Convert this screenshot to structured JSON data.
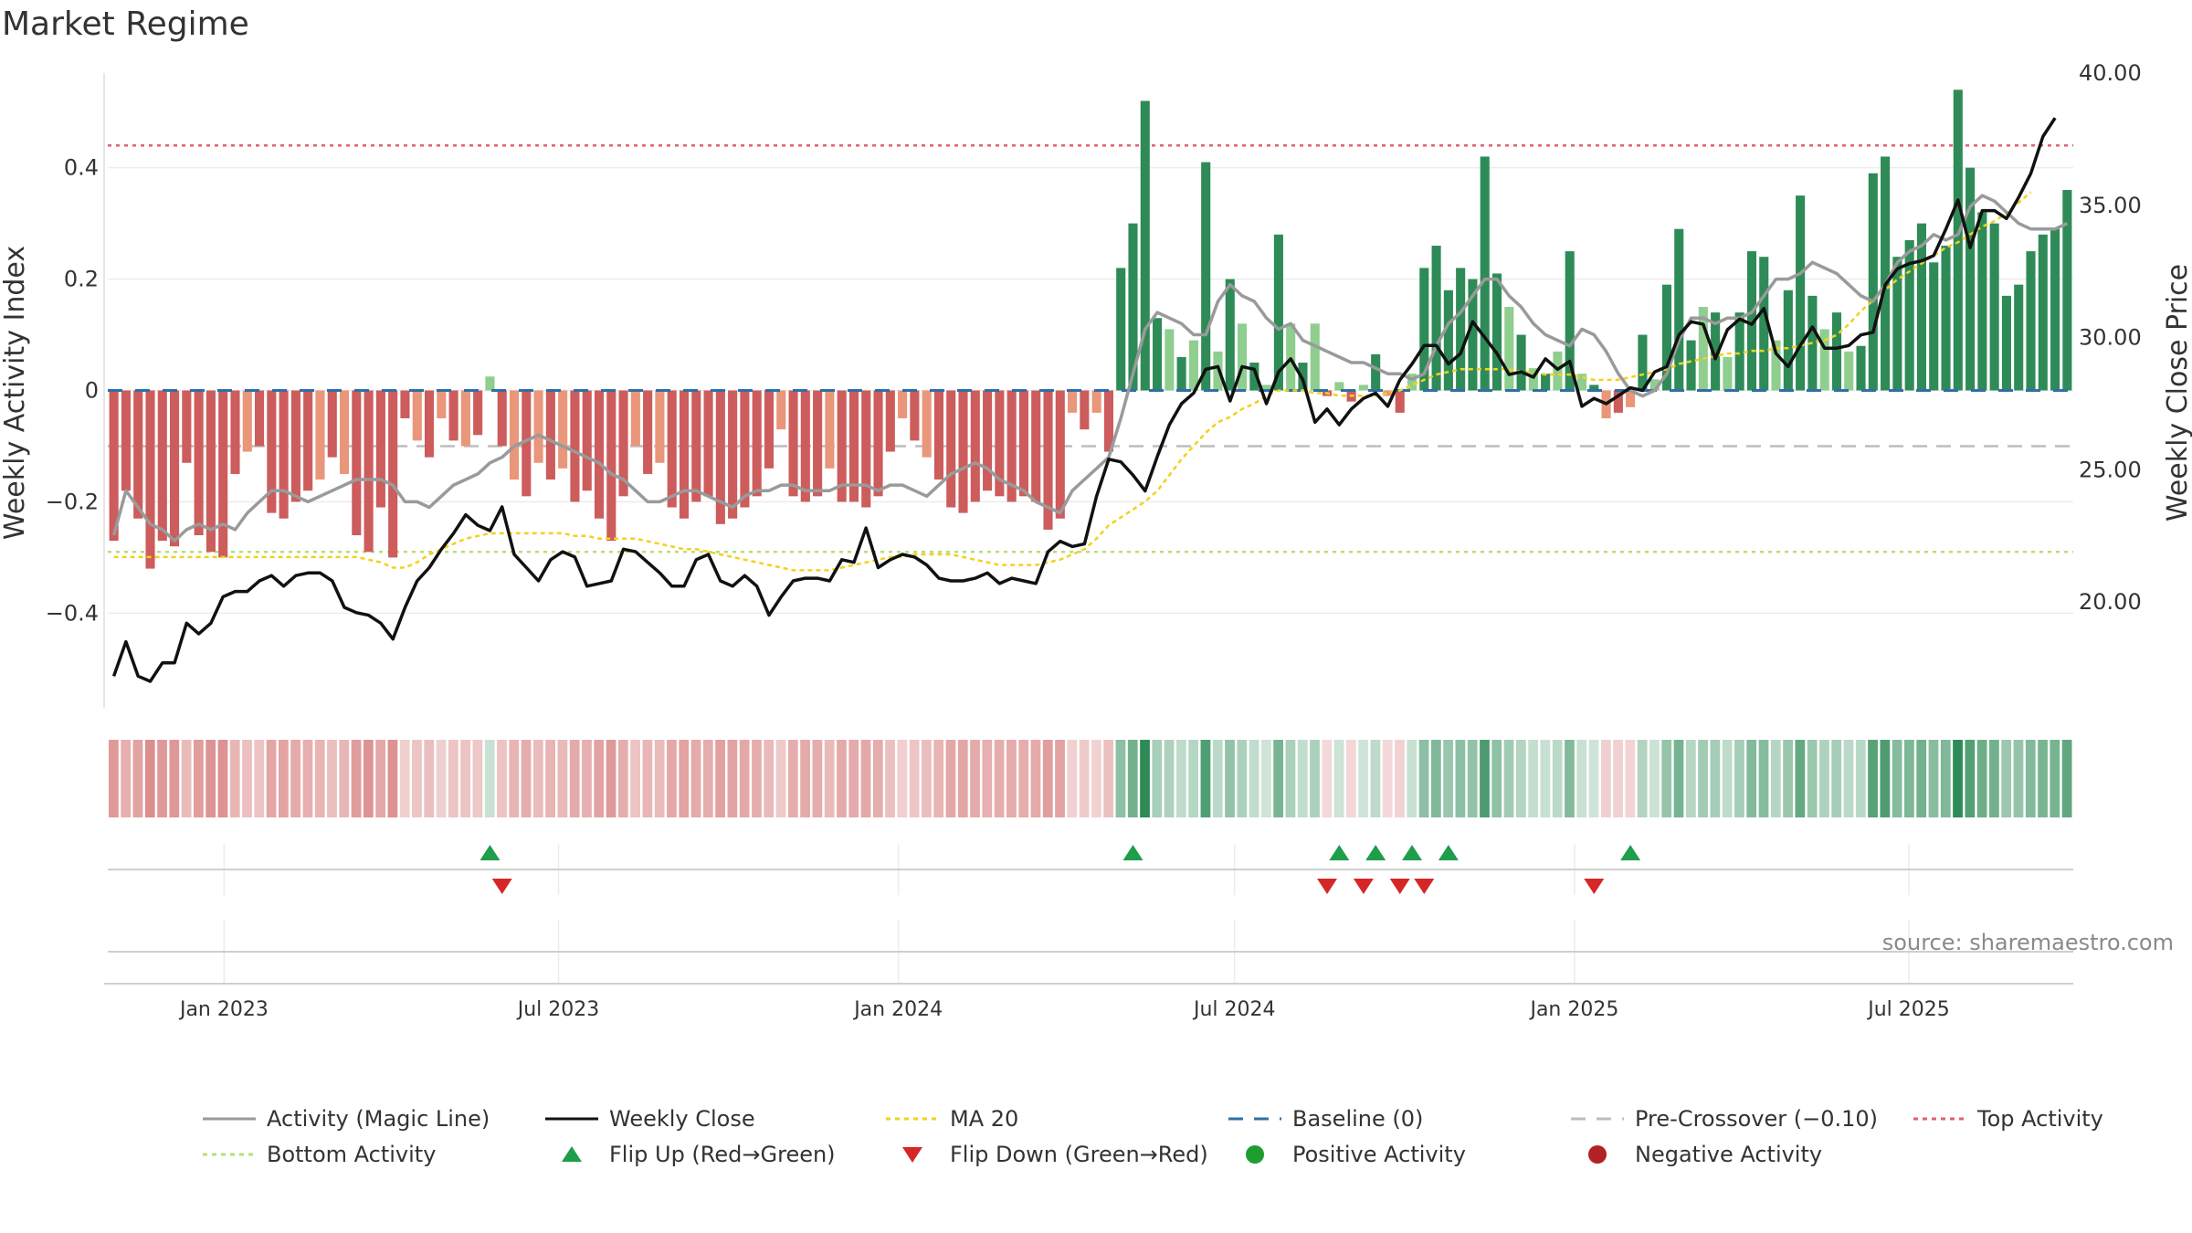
{
  "title": "Market Regime",
  "source": "source: sharemaestro.com",
  "chart_data": {
    "type": "bar",
    "title": "Market Regime",
    "ylabel_left": "Weekly Activity Index",
    "ylabel_right": "Weekly Close Price",
    "left_axis": {
      "range": [
        -0.57,
        0.57
      ],
      "ticks": [
        -0.4,
        -0.2,
        0,
        0.2,
        0.4
      ],
      "tick_labels": [
        "−0.4",
        "−0.2",
        "0",
        "0.2",
        "0.4"
      ]
    },
    "right_axis": {
      "range": [
        16.0,
        40.0
      ],
      "ticks": [
        20,
        25,
        30,
        35,
        40
      ],
      "tick_labels": [
        "20.00",
        "25.00",
        "30.00",
        "35.00",
        "40.00"
      ]
    },
    "x_axis": {
      "start": "2022-10-30",
      "end": "2025-09-28",
      "ticks": [
        "2023-01-01",
        "2023-07-01",
        "2024-01-01",
        "2024-07-01",
        "2025-01-01",
        "2025-07-01"
      ],
      "tick_labels": [
        "Jan 2023",
        "Jul 2023",
        "Jan 2024",
        "Jul 2024",
        "Jan 2025",
        "Jul 2025"
      ]
    },
    "reference_lines": {
      "baseline": 0,
      "pre_crossover": -0.1,
      "top_activity": 0.44,
      "bottom_activity": -0.29
    },
    "colors": {
      "strong_negative": "#cd5c5c",
      "weak_negative": "#e9967a",
      "strong_positive": "#2e8b57",
      "weak_positive": "#8fce8f",
      "magic_line": "#9a9a9a",
      "weekly_close": "#111111",
      "ma20": "#f2d21b",
      "baseline": "#2f6fa7",
      "pre_crossover": "#bdbdbd",
      "top_activity": "#e06070",
      "bottom_activity": "#b9dd7a",
      "flip_up": "#1e9e4a",
      "flip_down": "#d62728",
      "positive_activity": "#1e9e2e",
      "negative_activity": "#b22222"
    },
    "legend": [
      {
        "label": "Activity (Magic Line)",
        "style": "line-solid",
        "color": "#9a9a9a"
      },
      {
        "label": "Weekly Close",
        "style": "line-solid",
        "color": "#111111"
      },
      {
        "label": "MA 20",
        "style": "line-dotted",
        "color": "#f2d21b"
      },
      {
        "label": "Baseline (0)",
        "style": "line-dashed",
        "color": "#2f6fa7"
      },
      {
        "label": "Pre-Crossover (−0.10)",
        "style": "line-dashed",
        "color": "#bdbdbd"
      },
      {
        "label": "Top Activity",
        "style": "line-dotted",
        "color": "#e06070"
      },
      {
        "label": "Bottom Activity",
        "style": "line-dotted",
        "color": "#b9dd7a"
      },
      {
        "label": "Flip Up (Red→Green)",
        "style": "triangle-up",
        "color": "#1e9e4a"
      },
      {
        "label": "Flip Down (Green→Red)",
        "style": "triangle-down",
        "color": "#d62728"
      },
      {
        "label": "Positive Activity",
        "style": "circle",
        "color": "#1e9e2e"
      },
      {
        "label": "Negative Activity",
        "style": "circle",
        "color": "#b22222"
      }
    ],
    "activity": [
      -0.27,
      -0.18,
      -0.23,
      -0.32,
      -0.27,
      -0.28,
      -0.13,
      -0.26,
      -0.29,
      -0.3,
      -0.15,
      -0.11,
      -0.1,
      -0.22,
      -0.23,
      -0.2,
      -0.18,
      -0.16,
      -0.12,
      -0.15,
      -0.26,
      -0.29,
      -0.21,
      -0.3,
      -0.05,
      -0.09,
      -0.12,
      -0.05,
      -0.09,
      -0.1,
      -0.08,
      0.025,
      -0.1,
      -0.16,
      -0.19,
      -0.13,
      -0.16,
      -0.14,
      -0.2,
      -0.18,
      -0.23,
      -0.27,
      -0.19,
      -0.1,
      -0.15,
      -0.13,
      -0.21,
      -0.23,
      -0.2,
      -0.19,
      -0.24,
      -0.23,
      -0.21,
      -0.19,
      -0.14,
      -0.07,
      -0.19,
      -0.2,
      -0.19,
      -0.14,
      -0.2,
      -0.2,
      -0.21,
      -0.19,
      -0.11,
      -0.05,
      -0.09,
      -0.12,
      -0.16,
      -0.21,
      -0.22,
      -0.2,
      -0.18,
      -0.19,
      -0.2,
      -0.19,
      -0.2,
      -0.25,
      -0.23,
      -0.04,
      -0.07,
      -0.04,
      -0.11,
      0.22,
      0.3,
      0.52,
      0.13,
      0.11,
      0.06,
      0.09,
      0.41,
      0.07,
      0.2,
      0.12,
      0.05,
      0.01,
      0.28,
      0.12,
      0.05,
      0.12,
      -0.01,
      0.015,
      -0.02,
      0.01,
      0.065,
      -0.01,
      -0.04,
      0.03,
      0.22,
      0.26,
      0.18,
      0.22,
      0.2,
      0.42,
      0.21,
      0.15,
      0.1,
      0.04,
      0.03,
      0.07,
      0.25,
      0.03,
      0.01,
      -0.05,
      -0.04,
      -0.03,
      0.1,
      0.02,
      0.19,
      0.29,
      0.09,
      0.15,
      0.14,
      0.06,
      0.14,
      0.25,
      0.24,
      0.09,
      0.18,
      0.35,
      0.17,
      0.11,
      0.14,
      0.07,
      0.08,
      0.39,
      0.42,
      0.24,
      0.27,
      0.3,
      0.23,
      0.26,
      0.54,
      0.4,
      0.32,
      0.3,
      0.17,
      0.19,
      0.25,
      0.28,
      0.29,
      0.36
    ],
    "magic_line": [
      -0.26,
      -0.18,
      -0.21,
      -0.24,
      -0.25,
      -0.27,
      -0.25,
      -0.24,
      -0.25,
      -0.24,
      -0.25,
      -0.22,
      -0.2,
      -0.18,
      -0.18,
      -0.19,
      -0.2,
      -0.19,
      -0.18,
      -0.17,
      -0.16,
      -0.16,
      -0.16,
      -0.17,
      -0.2,
      -0.2,
      -0.21,
      -0.19,
      -0.17,
      -0.16,
      -0.15,
      -0.13,
      -0.12,
      -0.1,
      -0.09,
      -0.08,
      -0.09,
      -0.1,
      -0.11,
      -0.12,
      -0.13,
      -0.15,
      -0.16,
      -0.18,
      -0.2,
      -0.2,
      -0.19,
      -0.18,
      -0.18,
      -0.19,
      -0.2,
      -0.21,
      -0.19,
      -0.18,
      -0.18,
      -0.17,
      -0.17,
      -0.18,
      -0.18,
      -0.18,
      -0.17,
      -0.17,
      -0.17,
      -0.18,
      -0.17,
      -0.17,
      -0.18,
      -0.19,
      -0.17,
      -0.15,
      -0.14,
      -0.13,
      -0.14,
      -0.16,
      -0.17,
      -0.18,
      -0.2,
      -0.21,
      -0.22,
      -0.18,
      -0.16,
      -0.14,
      -0.12,
      -0.05,
      0.03,
      0.11,
      0.14,
      0.13,
      0.12,
      0.1,
      0.1,
      0.16,
      0.19,
      0.17,
      0.16,
      0.13,
      0.11,
      0.12,
      0.09,
      0.08,
      0.07,
      0.06,
      0.05,
      0.05,
      0.04,
      0.03,
      0.03,
      0.02,
      0.03,
      0.08,
      0.12,
      0.14,
      0.17,
      0.2,
      0.2,
      0.17,
      0.15,
      0.12,
      0.1,
      0.09,
      0.08,
      0.11,
      0.1,
      0.07,
      0.03,
      0.0,
      -0.01,
      0.0,
      0.03,
      0.09,
      0.13,
      0.13,
      0.12,
      0.13,
      0.13,
      0.14,
      0.17,
      0.2,
      0.2,
      0.21,
      0.23,
      0.22,
      0.21,
      0.19,
      0.17,
      0.16,
      0.19,
      0.23,
      0.25,
      0.26,
      0.28,
      0.27,
      0.28,
      0.33,
      0.35,
      0.34,
      0.32,
      0.3,
      0.29,
      0.29,
      0.29,
      0.3
    ],
    "weekly_close": [
      17.2,
      18.5,
      17.2,
      17.0,
      17.7,
      17.7,
      19.2,
      18.8,
      19.2,
      20.2,
      20.4,
      20.4,
      20.8,
      21.0,
      20.6,
      21.0,
      21.1,
      21.1,
      20.8,
      19.8,
      19.6,
      19.5,
      19.2,
      18.6,
      19.8,
      20.8,
      21.3,
      22.0,
      22.6,
      23.3,
      22.9,
      22.7,
      23.6,
      21.8,
      21.3,
      20.8,
      21.6,
      21.9,
      21.7,
      20.6,
      20.7,
      20.8,
      22.0,
      21.9,
      21.5,
      21.1,
      20.6,
      20.6,
      21.6,
      21.8,
      20.8,
      20.6,
      21.0,
      20.6,
      19.5,
      20.2,
      20.8,
      20.9,
      20.9,
      20.8,
      21.6,
      21.5,
      22.8,
      21.3,
      21.6,
      21.8,
      21.7,
      21.4,
      20.9,
      20.8,
      20.8,
      20.9,
      21.1,
      20.7,
      20.9,
      20.8,
      20.7,
      21.9,
      22.3,
      22.1,
      22.2,
      24.0,
      25.4,
      25.3,
      24.8,
      24.2,
      25.5,
      26.7,
      27.5,
      27.9,
      28.8,
      28.9,
      27.6,
      28.9,
      28.8,
      27.5,
      28.7,
      29.2,
      28.4,
      26.8,
      27.3,
      26.7,
      27.3,
      27.7,
      27.9,
      27.4,
      28.4,
      29.0,
      29.7,
      29.7,
      29.0,
      29.4,
      30.6,
      30.0,
      29.4,
      28.6,
      28.7,
      28.5,
      29.2,
      28.8,
      29.1,
      27.4,
      27.7,
      27.5,
      27.8,
      28.1,
      28.0,
      28.7,
      28.9,
      30.1,
      30.6,
      30.5,
      29.2,
      30.3,
      30.7,
      30.5,
      31.1,
      29.4,
      28.9,
      29.7,
      30.4,
      29.6,
      29.6,
      29.7,
      30.1,
      30.2,
      32.0,
      32.6,
      32.8,
      32.9,
      33.1,
      34.1,
      35.2,
      33.4,
      34.8,
      34.8,
      34.5,
      35.3,
      36.2,
      37.6,
      38.3
    ],
    "ma20": [
      21.7,
      21.7,
      21.7,
      21.7,
      21.7,
      21.7,
      21.7,
      21.7,
      21.7,
      21.7,
      21.7,
      21.7,
      21.7,
      21.7,
      21.7,
      21.7,
      21.7,
      21.7,
      21.7,
      21.7,
      21.7,
      21.6,
      21.5,
      21.3,
      21.3,
      21.5,
      21.8,
      22.0,
      22.2,
      22.4,
      22.5,
      22.6,
      22.6,
      22.6,
      22.6,
      22.6,
      22.6,
      22.6,
      22.5,
      22.5,
      22.4,
      22.4,
      22.4,
      22.4,
      22.3,
      22.2,
      22.1,
      22.0,
      22.0,
      21.9,
      21.8,
      21.7,
      21.6,
      21.5,
      21.4,
      21.3,
      21.2,
      21.2,
      21.2,
      21.2,
      21.3,
      21.4,
      21.5,
      21.6,
      21.7,
      21.7,
      21.8,
      21.8,
      21.8,
      21.8,
      21.7,
      21.6,
      21.5,
      21.4,
      21.4,
      21.4,
      21.4,
      21.5,
      21.6,
      21.8,
      22.0,
      22.4,
      22.9,
      23.2,
      23.5,
      23.8,
      24.2,
      24.8,
      25.4,
      25.9,
      26.4,
      26.8,
      27.0,
      27.3,
      27.5,
      27.8,
      28.0,
      28.0,
      28.0,
      27.9,
      27.9,
      27.8,
      27.8,
      27.8,
      27.8,
      27.9,
      28.0,
      28.2,
      28.4,
      28.6,
      28.7,
      28.8,
      28.8,
      28.8,
      28.8,
      28.8,
      28.7,
      28.7,
      28.6,
      28.6,
      28.6,
      28.5,
      28.4,
      28.4,
      28.4,
      28.5,
      28.6,
      28.7,
      28.8,
      29.0,
      29.1,
      29.2,
      29.3,
      29.4,
      29.4,
      29.5,
      29.5,
      29.6,
      29.6,
      29.7,
      29.8,
      29.9,
      30.1,
      30.5,
      31.0,
      31.4,
      31.8,
      32.2,
      32.5,
      32.8,
      33.1,
      33.4,
      33.6,
      33.9,
      34.2,
      34.4,
      34.7,
      35.1,
      35.5
    ],
    "flip_up_weeks": [
      31,
      84,
      101,
      104,
      107,
      110,
      125
    ],
    "flip_down_weeks": [
      32,
      100,
      103,
      106,
      108,
      122
    ],
    "positive_activity_weeks": [],
    "negative_activity_weeks": []
  }
}
